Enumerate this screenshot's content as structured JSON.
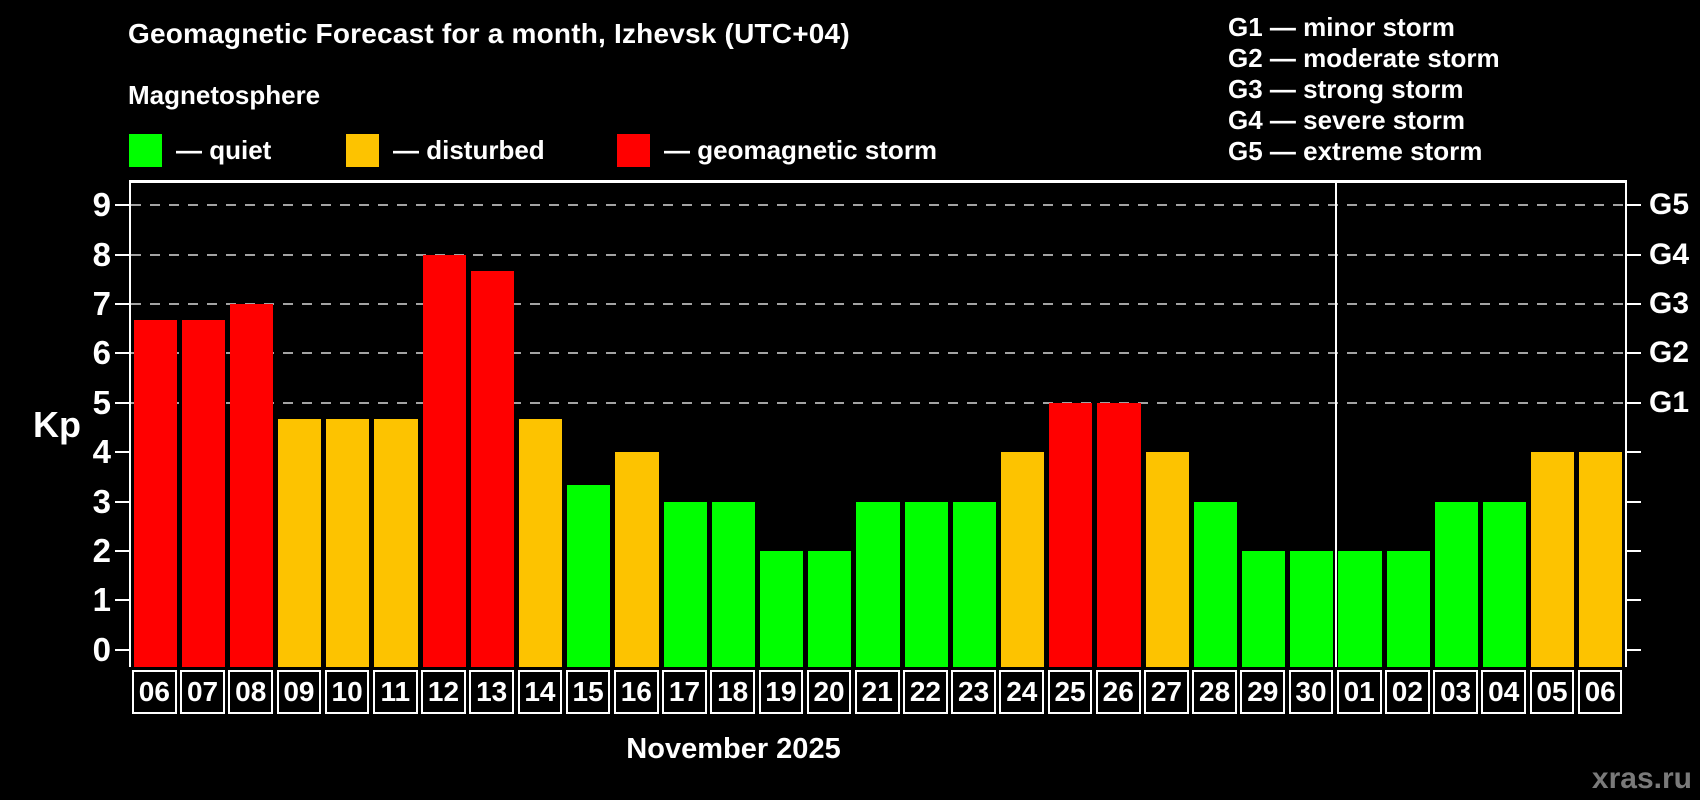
{
  "header": {
    "title": "Geomagnetic Forecast for a month, Izhevsk (UTC+04)",
    "subtitle": "Magnetosphere"
  },
  "legend": {
    "items": [
      {
        "key": "quiet",
        "label": "— quiet",
        "color": "#00ff00"
      },
      {
        "key": "disturbed",
        "label": "— disturbed",
        "color": "#fdc300"
      },
      {
        "key": "storm",
        "label": "— geomagnetic storm",
        "color": "#ff0000"
      }
    ]
  },
  "storm_scale": {
    "items": [
      "G1 — minor storm",
      "G2 — moderate storm",
      "G3 — strong storm",
      "G4 — severe storm",
      "G5 — extreme storm"
    ]
  },
  "chart_data": {
    "type": "bar",
    "title": "Geomagnetic Forecast for a month, Izhevsk (UTC+04)",
    "ylabel": "Kp",
    "ylim": [
      0,
      9.5
    ],
    "yticks": [
      0,
      1,
      2,
      3,
      4,
      5,
      6,
      7,
      8,
      9
    ],
    "grid_kp": [
      5,
      6,
      7,
      8,
      9
    ],
    "grid_style": "dashed",
    "legend_position": "top",
    "right_axis": [
      {
        "kp": 5,
        "label": "G1"
      },
      {
        "kp": 6,
        "label": "G2"
      },
      {
        "kp": 7,
        "label": "G3"
      },
      {
        "kp": 8,
        "label": "G4"
      },
      {
        "kp": 9,
        "label": "G5"
      }
    ],
    "colors": {
      "quiet": "#00ff00",
      "disturbed": "#fdc300",
      "storm": "#ff0000"
    },
    "divider_after_index": 24,
    "categories": [
      "06",
      "07",
      "08",
      "09",
      "10",
      "11",
      "12",
      "13",
      "14",
      "15",
      "16",
      "17",
      "18",
      "19",
      "20",
      "21",
      "22",
      "23",
      "24",
      "25",
      "26",
      "27",
      "28",
      "29",
      "30",
      "01",
      "02",
      "03",
      "04",
      "05",
      "06"
    ],
    "bars": [
      {
        "day": "06",
        "kp": 6.67,
        "level": "storm"
      },
      {
        "day": "07",
        "kp": 6.67,
        "level": "storm"
      },
      {
        "day": "08",
        "kp": 7.0,
        "level": "storm"
      },
      {
        "day": "09",
        "kp": 4.67,
        "level": "disturbed"
      },
      {
        "day": "10",
        "kp": 4.67,
        "level": "disturbed"
      },
      {
        "day": "11",
        "kp": 4.67,
        "level": "disturbed"
      },
      {
        "day": "12",
        "kp": 8.0,
        "level": "storm"
      },
      {
        "day": "13",
        "kp": 7.67,
        "level": "storm"
      },
      {
        "day": "14",
        "kp": 4.67,
        "level": "disturbed"
      },
      {
        "day": "15",
        "kp": 3.33,
        "level": "quiet"
      },
      {
        "day": "16",
        "kp": 4.0,
        "level": "disturbed"
      },
      {
        "day": "17",
        "kp": 3.0,
        "level": "quiet"
      },
      {
        "day": "18",
        "kp": 3.0,
        "level": "quiet"
      },
      {
        "day": "19",
        "kp": 2.0,
        "level": "quiet"
      },
      {
        "day": "20",
        "kp": 2.0,
        "level": "quiet"
      },
      {
        "day": "21",
        "kp": 3.0,
        "level": "quiet"
      },
      {
        "day": "22",
        "kp": 3.0,
        "level": "quiet"
      },
      {
        "day": "23",
        "kp": 3.0,
        "level": "quiet"
      },
      {
        "day": "24",
        "kp": 4.0,
        "level": "disturbed"
      },
      {
        "day": "25",
        "kp": 5.0,
        "level": "storm"
      },
      {
        "day": "26",
        "kp": 5.0,
        "level": "storm"
      },
      {
        "day": "27",
        "kp": 4.0,
        "level": "disturbed"
      },
      {
        "day": "28",
        "kp": 3.0,
        "level": "quiet"
      },
      {
        "day": "29",
        "kp": 2.0,
        "level": "quiet"
      },
      {
        "day": "30",
        "kp": 2.0,
        "level": "quiet"
      },
      {
        "day": "01",
        "kp": 2.0,
        "level": "quiet"
      },
      {
        "day": "02",
        "kp": 2.0,
        "level": "quiet"
      },
      {
        "day": "03",
        "kp": 3.0,
        "level": "quiet"
      },
      {
        "day": "04",
        "kp": 3.0,
        "level": "quiet"
      },
      {
        "day": "05",
        "kp": 4.0,
        "level": "disturbed"
      },
      {
        "day": "06",
        "kp": 4.0,
        "level": "disturbed"
      }
    ]
  },
  "footer": {
    "month_label": "November 2025",
    "watermark": "xras.ru"
  }
}
